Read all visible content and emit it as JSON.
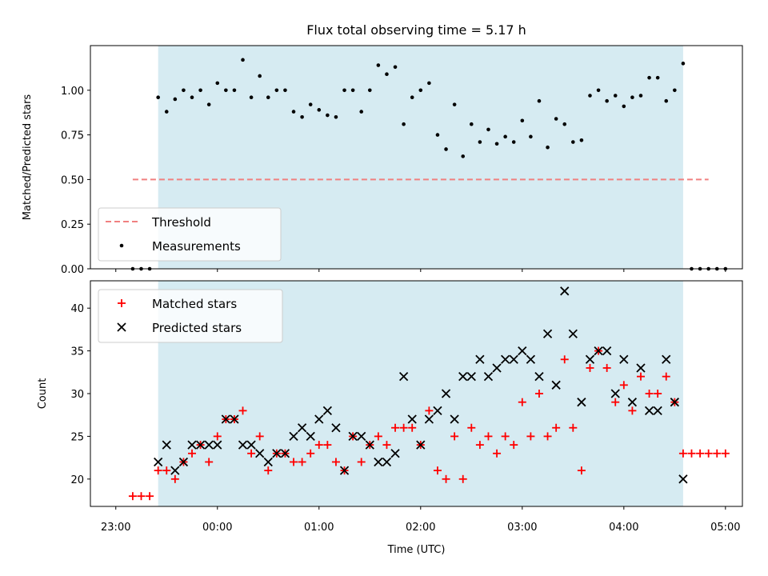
{
  "chart_data": [
    {
      "type": "scatter",
      "title": "Flux total observing time = 5.17 h",
      "ylabel": "Matched/Predicted stars",
      "xlabel": "",
      "xlim": [
        "22:45",
        "05:10"
      ],
      "ylim": [
        0,
        1.25
      ],
      "y_ticks": [
        "0.00",
        "0.25",
        "0.50",
        "0.75",
        "1.00"
      ],
      "shaded_interval": [
        "23:25",
        "04:35"
      ],
      "legend_position": "lower left",
      "series": [
        {
          "name": "Threshold",
          "kind": "dashed-line",
          "color": "#f08080",
          "x": [
            "23:10",
            "04:50"
          ],
          "y": [
            0.5,
            0.5
          ]
        },
        {
          "name": "Measurements",
          "kind": "dot",
          "color": "#000000",
          "points": [
            [
              "23:10",
              0
            ],
            [
              "23:15",
              0
            ],
            [
              "23:20",
              0
            ],
            [
              "23:25",
              0.96
            ],
            [
              "23:30",
              0.88
            ],
            [
              "23:35",
              0.95
            ],
            [
              "23:40",
              1.0
            ],
            [
              "23:45",
              0.96
            ],
            [
              "23:50",
              1.0
            ],
            [
              "23:55",
              0.92
            ],
            [
              "00:00",
              1.04
            ],
            [
              "00:05",
              1.0
            ],
            [
              "00:10",
              1.0
            ],
            [
              "00:15",
              1.17
            ],
            [
              "00:20",
              0.96
            ],
            [
              "00:25",
              1.08
            ],
            [
              "00:30",
              0.96
            ],
            [
              "00:35",
              1.0
            ],
            [
              "00:40",
              1.0
            ],
            [
              "00:45",
              0.88
            ],
            [
              "00:50",
              0.85
            ],
            [
              "00:55",
              0.92
            ],
            [
              "01:00",
              0.89
            ],
            [
              "01:05",
              0.86
            ],
            [
              "01:10",
              0.85
            ],
            [
              "01:15",
              1.0
            ],
            [
              "01:20",
              1.0
            ],
            [
              "01:25",
              0.88
            ],
            [
              "01:30",
              1.0
            ],
            [
              "01:35",
              1.14
            ],
            [
              "01:40",
              1.09
            ],
            [
              "01:45",
              1.13
            ],
            [
              "01:50",
              0.81
            ],
            [
              "01:55",
              0.96
            ],
            [
              "02:00",
              1.0
            ],
            [
              "02:05",
              1.04
            ],
            [
              "02:10",
              0.75
            ],
            [
              "02:15",
              0.67
            ],
            [
              "02:20",
              0.92
            ],
            [
              "02:25",
              0.63
            ],
            [
              "02:30",
              0.81
            ],
            [
              "02:35",
              0.71
            ],
            [
              "02:40",
              0.78
            ],
            [
              "02:45",
              0.7
            ],
            [
              "02:50",
              0.74
            ],
            [
              "02:55",
              0.71
            ],
            [
              "03:00",
              0.83
            ],
            [
              "03:05",
              0.74
            ],
            [
              "03:10",
              0.94
            ],
            [
              "03:15",
              0.68
            ],
            [
              "03:20",
              0.84
            ],
            [
              "03:25",
              0.81
            ],
            [
              "03:30",
              0.71
            ],
            [
              "03:35",
              0.72
            ],
            [
              "03:40",
              0.97
            ],
            [
              "03:45",
              1.0
            ],
            [
              "03:50",
              0.94
            ],
            [
              "03:55",
              0.97
            ],
            [
              "04:00",
              0.91
            ],
            [
              "04:05",
              0.96
            ],
            [
              "04:10",
              0.97
            ],
            [
              "04:15",
              1.07
            ],
            [
              "04:20",
              1.07
            ],
            [
              "04:25",
              0.94
            ],
            [
              "04:30",
              1.0
            ],
            [
              "04:35",
              1.15
            ],
            [
              "04:40",
              0
            ],
            [
              "04:45",
              0
            ],
            [
              "04:50",
              0
            ],
            [
              "04:55",
              0
            ],
            [
              "05:00",
              0
            ]
          ]
        }
      ]
    },
    {
      "type": "scatter",
      "title": "",
      "ylabel": "Count",
      "xlabel": "Time (UTC)",
      "xlim": [
        "22:45",
        "05:10"
      ],
      "ylim": [
        16.8,
        43.2
      ],
      "x_ticks": [
        "23:00",
        "00:00",
        "01:00",
        "02:00",
        "03:00",
        "04:00",
        "05:00"
      ],
      "y_ticks": [
        "20",
        "25",
        "30",
        "35",
        "40"
      ],
      "shaded_interval": [
        "23:25",
        "04:35"
      ],
      "legend_position": "upper left",
      "series": [
        {
          "name": "Matched stars",
          "kind": "plus",
          "color": "#ff0000",
          "points": [
            [
              "23:10",
              18
            ],
            [
              "23:15",
              18
            ],
            [
              "23:20",
              18
            ],
            [
              "23:25",
              21
            ],
            [
              "23:30",
              21
            ],
            [
              "23:35",
              20
            ],
            [
              "23:40",
              22
            ],
            [
              "23:45",
              23
            ],
            [
              "23:50",
              24
            ],
            [
              "23:55",
              22
            ],
            [
              "00:00",
              25
            ],
            [
              "00:05",
              27
            ],
            [
              "00:10",
              27
            ],
            [
              "00:15",
              28
            ],
            [
              "00:20",
              23
            ],
            [
              "00:25",
              25
            ],
            [
              "00:30",
              21
            ],
            [
              "00:35",
              23
            ],
            [
              "00:40",
              23
            ],
            [
              "00:45",
              22
            ],
            [
              "00:50",
              22
            ],
            [
              "00:55",
              23
            ],
            [
              "01:00",
              24
            ],
            [
              "01:05",
              24
            ],
            [
              "01:10",
              22
            ],
            [
              "01:15",
              21
            ],
            [
              "01:20",
              25
            ],
            [
              "01:25",
              22
            ],
            [
              "01:30",
              24
            ],
            [
              "01:35",
              25
            ],
            [
              "01:40",
              24
            ],
            [
              "01:45",
              26
            ],
            [
              "01:50",
              26
            ],
            [
              "01:55",
              26
            ],
            [
              "02:00",
              24
            ],
            [
              "02:05",
              28
            ],
            [
              "02:10",
              21
            ],
            [
              "02:15",
              20
            ],
            [
              "02:20",
              25
            ],
            [
              "02:25",
              20
            ],
            [
              "02:30",
              26
            ],
            [
              "02:35",
              24
            ],
            [
              "02:40",
              25
            ],
            [
              "02:45",
              23
            ],
            [
              "02:50",
              25
            ],
            [
              "02:55",
              24
            ],
            [
              "03:00",
              29
            ],
            [
              "03:05",
              25
            ],
            [
              "03:10",
              30
            ],
            [
              "03:15",
              25
            ],
            [
              "03:20",
              26
            ],
            [
              "03:25",
              34
            ],
            [
              "03:30",
              26
            ],
            [
              "03:35",
              21
            ],
            [
              "03:40",
              33
            ],
            [
              "03:45",
              35
            ],
            [
              "03:50",
              33
            ],
            [
              "03:55",
              29
            ],
            [
              "04:00",
              31
            ],
            [
              "04:05",
              28
            ],
            [
              "04:10",
              32
            ],
            [
              "04:15",
              30
            ],
            [
              "04:20",
              30
            ],
            [
              "04:25",
              32
            ],
            [
              "04:30",
              29
            ],
            [
              "04:35",
              23
            ],
            [
              "04:40",
              23
            ],
            [
              "04:45",
              23
            ],
            [
              "04:50",
              23
            ],
            [
              "04:55",
              23
            ],
            [
              "05:00",
              23
            ]
          ]
        },
        {
          "name": "Predicted stars",
          "kind": "x",
          "color": "#000000",
          "points": [
            [
              "23:25",
              22
            ],
            [
              "23:30",
              24
            ],
            [
              "23:35",
              21
            ],
            [
              "23:40",
              22
            ],
            [
              "23:45",
              24
            ],
            [
              "23:50",
              24
            ],
            [
              "23:55",
              24
            ],
            [
              "00:00",
              24
            ],
            [
              "00:05",
              27
            ],
            [
              "00:10",
              27
            ],
            [
              "00:15",
              24
            ],
            [
              "00:20",
              24
            ],
            [
              "00:25",
              23
            ],
            [
              "00:30",
              22
            ],
            [
              "00:35",
              23
            ],
            [
              "00:40",
              23
            ],
            [
              "00:45",
              25
            ],
            [
              "00:50",
              26
            ],
            [
              "00:55",
              25
            ],
            [
              "01:00",
              27
            ],
            [
              "01:05",
              28
            ],
            [
              "01:10",
              26
            ],
            [
              "01:15",
              21
            ],
            [
              "01:20",
              25
            ],
            [
              "01:25",
              25
            ],
            [
              "01:30",
              24
            ],
            [
              "01:35",
              22
            ],
            [
              "01:40",
              22
            ],
            [
              "01:45",
              23
            ],
            [
              "01:50",
              32
            ],
            [
              "01:55",
              27
            ],
            [
              "02:00",
              24
            ],
            [
              "02:05",
              27
            ],
            [
              "02:10",
              28
            ],
            [
              "02:15",
              30
            ],
            [
              "02:20",
              27
            ],
            [
              "02:25",
              32
            ],
            [
              "02:30",
              32
            ],
            [
              "02:35",
              34
            ],
            [
              "02:40",
              32
            ],
            [
              "02:45",
              33
            ],
            [
              "02:50",
              34
            ],
            [
              "02:55",
              34
            ],
            [
              "03:00",
              35
            ],
            [
              "03:05",
              34
            ],
            [
              "03:10",
              32
            ],
            [
              "03:15",
              37
            ],
            [
              "03:20",
              31
            ],
            [
              "03:25",
              42
            ],
            [
              "03:30",
              37
            ],
            [
              "03:35",
              29
            ],
            [
              "03:40",
              34
            ],
            [
              "03:45",
              35
            ],
            [
              "03:50",
              35
            ],
            [
              "03:55",
              30
            ],
            [
              "04:00",
              34
            ],
            [
              "04:05",
              29
            ],
            [
              "04:10",
              33
            ],
            [
              "04:15",
              28
            ],
            [
              "04:20",
              28
            ],
            [
              "04:25",
              34
            ],
            [
              "04:30",
              29
            ],
            [
              "04:35",
              20
            ]
          ]
        }
      ]
    }
  ]
}
